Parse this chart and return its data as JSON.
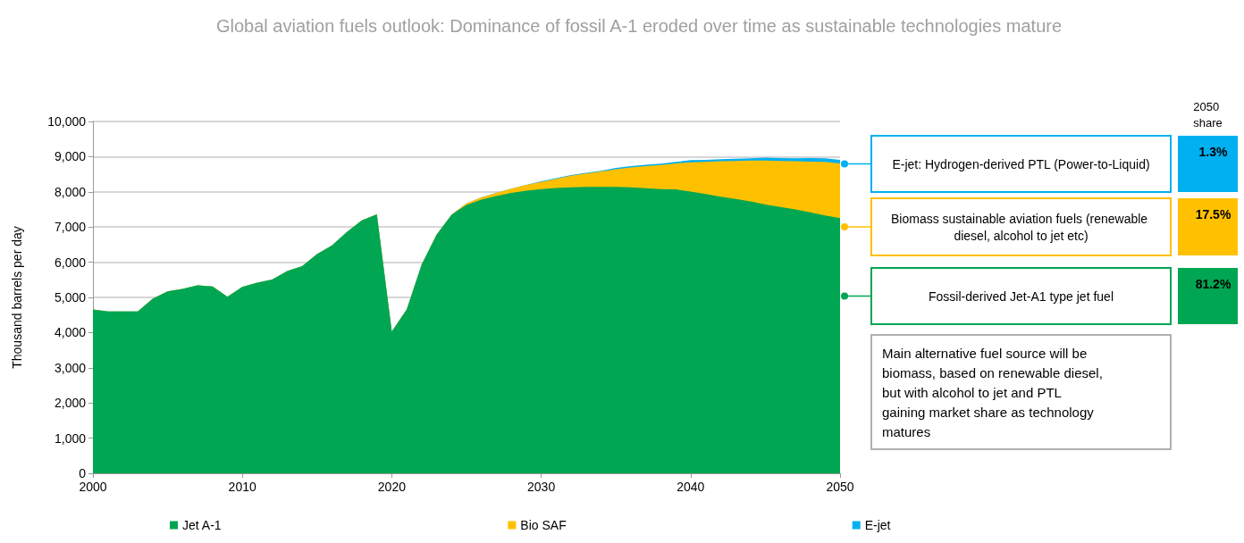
{
  "chart_data": {
    "type": "area",
    "title": "Global aviation fuels outlook: Dominance of fossil A-1 eroded over time as sustainable technologies mature",
    "ylabel": "Thousand barrels per day",
    "x": [
      2000,
      2001,
      2002,
      2003,
      2004,
      2005,
      2006,
      2007,
      2008,
      2009,
      2010,
      2011,
      2012,
      2013,
      2014,
      2015,
      2016,
      2017,
      2018,
      2019,
      2020,
      2021,
      2022,
      2023,
      2024,
      2025,
      2026,
      2027,
      2028,
      2029,
      2030,
      2031,
      2032,
      2033,
      2034,
      2035,
      2036,
      2037,
      2038,
      2039,
      2040,
      2041,
      2042,
      2043,
      2044,
      2045,
      2046,
      2047,
      2048,
      2049,
      2050
    ],
    "stacked": true,
    "series": [
      {
        "name": "Jet A-1",
        "color": "#00a651",
        "values": [
          4660,
          4600,
          4600,
          4600,
          4960,
          5170,
          5240,
          5340,
          5310,
          5020,
          5300,
          5420,
          5510,
          5750,
          5890,
          6230,
          6480,
          6860,
          7190,
          7360,
          4030,
          4660,
          5930,
          6780,
          7350,
          7630,
          7780,
          7880,
          7970,
          8030,
          8080,
          8110,
          8130,
          8140,
          8140,
          8140,
          8130,
          8100,
          8080,
          8070,
          8010,
          7940,
          7860,
          7800,
          7730,
          7640,
          7570,
          7500,
          7420,
          7330,
          7250
        ]
      },
      {
        "name": "Bio SAF",
        "color": "#ffc000",
        "values": [
          0,
          0,
          0,
          0,
          0,
          0,
          0,
          0,
          0,
          0,
          0,
          0,
          0,
          0,
          0,
          0,
          0,
          0,
          0,
          0,
          0,
          0,
          0,
          0,
          0,
          40,
          60,
          90,
          120,
          170,
          200,
          260,
          330,
          380,
          440,
          500,
          560,
          630,
          680,
          740,
          830,
          910,
          1010,
          1080,
          1160,
          1250,
          1310,
          1370,
          1440,
          1520,
          1560
        ]
      },
      {
        "name": "E-jet",
        "color": "#00b0f0",
        "values": [
          0,
          0,
          0,
          0,
          0,
          0,
          0,
          0,
          0,
          0,
          0,
          0,
          0,
          0,
          0,
          0,
          0,
          0,
          0,
          0,
          0,
          0,
          0,
          0,
          0,
          0,
          0,
          0,
          0,
          0,
          20,
          20,
          20,
          20,
          20,
          40,
          40,
          40,
          40,
          40,
          60,
          60,
          60,
          60,
          60,
          80,
          80,
          80,
          100,
          100,
          100
        ]
      }
    ],
    "xlim": [
      2000,
      2050
    ],
    "xticks": [
      2000,
      2010,
      2020,
      2030,
      2040,
      2050
    ],
    "ylim": [
      0,
      10000
    ],
    "yticks": [
      0,
      {
        "value": 1000,
        "label": "1,000"
      },
      {
        "value": 2000,
        "label": "2,000"
      },
      {
        "value": 3000,
        "label": "3,000"
      },
      {
        "value": 4000,
        "label": "4,000"
      },
      {
        "value": 5000,
        "label": "5,000"
      },
      {
        "value": 6000,
        "label": "6,000"
      },
      {
        "value": 7000,
        "label": "7,000"
      },
      {
        "value": 8000,
        "label": "8,000"
      },
      {
        "value": 9000,
        "label": "9,000"
      },
      {
        "value": 10000,
        "label": "10,000"
      }
    ],
    "grid": "y",
    "legend": "bottom",
    "annotations": [
      "E-jet: Hydrogen-derived PTL (Power-to-Liquid)",
      "Biomass sustainable aviation fuels (renewable diesel, alcohol to jet etc)",
      "Fossil-derived Jet-A1 type jet fuel",
      "2050 share",
      "1.3%",
      "17.5%",
      "81.2%",
      "Main alternative fuel source will be biomass, based on renewable diesel, but with alcohol to jet and PTL gaining market share as technology matures"
    ]
  }
}
